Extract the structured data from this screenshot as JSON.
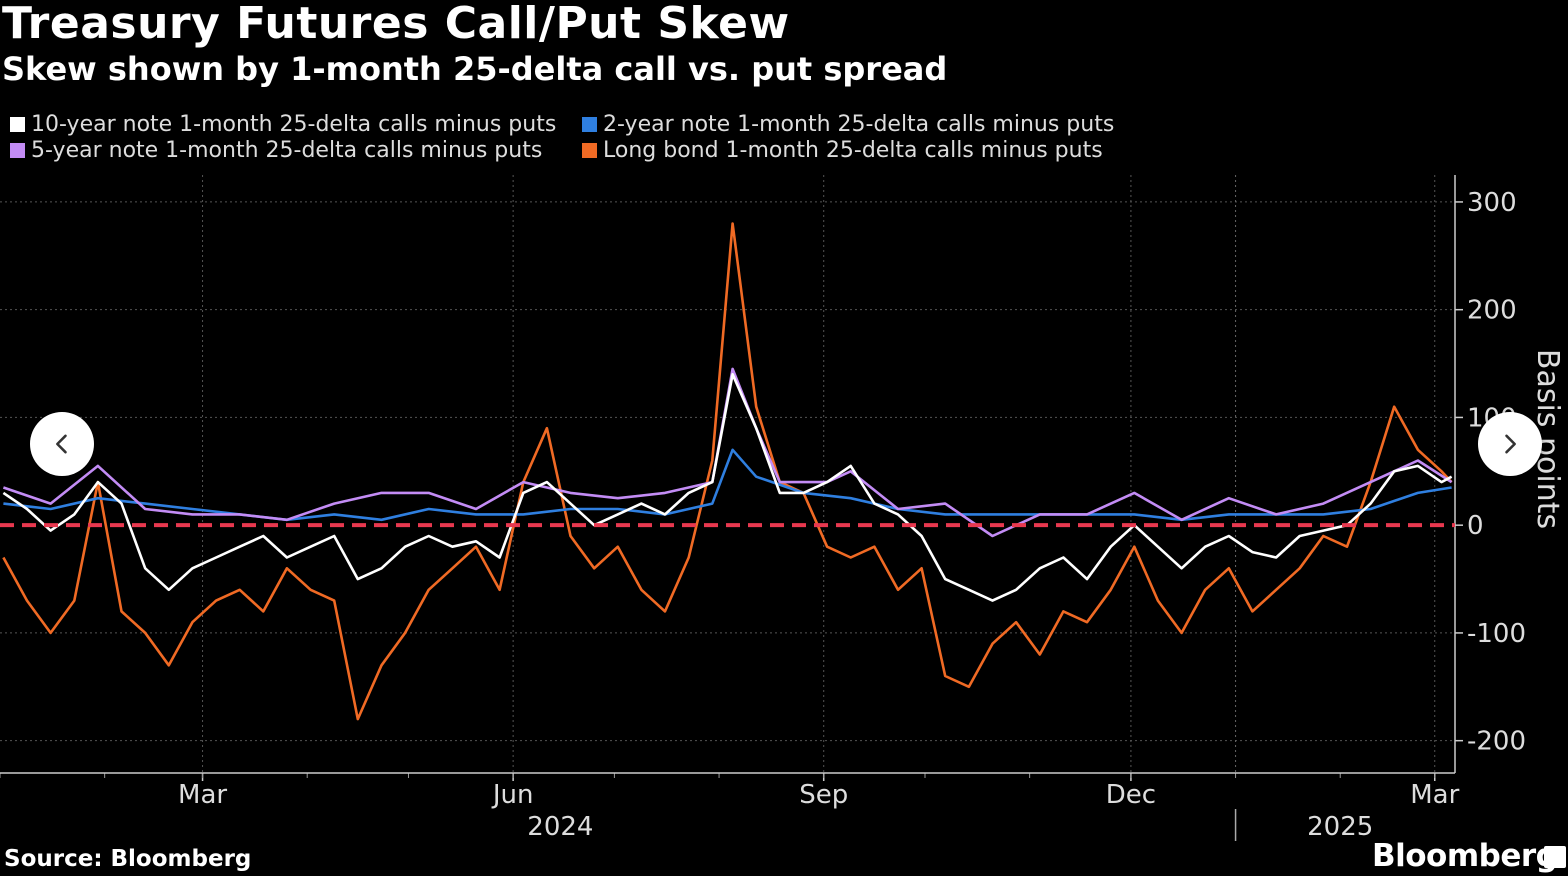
{
  "title": "Treasury Futures Call/Put Skew",
  "subtitle": "Skew shown by 1-month 25-delta call vs. put spread",
  "source": "Source: Bloomberg",
  "brand": "Bloomberg",
  "nav": {
    "prev_icon": "chevron-left-icon",
    "next_icon": "chevron-right-icon"
  },
  "chart_data": {
    "type": "line",
    "ylabel": "Basis points",
    "ylim": [
      -230,
      325
    ],
    "yticks": [
      300,
      200,
      100,
      0,
      -100,
      -200
    ],
    "zero_line": {
      "value": 0,
      "color": "#e8384f",
      "style": "dashed"
    },
    "x_start": "2024-01-01",
    "x_end": "2025-03-07",
    "month_ticks": [
      {
        "label": "Mar",
        "date": "2024-03-01"
      },
      {
        "label": "Jun",
        "date": "2024-06-01"
      },
      {
        "label": "Sep",
        "date": "2024-09-01"
      },
      {
        "label": "Dec",
        "date": "2024-12-01"
      },
      {
        "label": "Mar",
        "date": "2025-03-01"
      }
    ],
    "year_labels": [
      {
        "label": "2024",
        "date": "2024-06-15"
      },
      {
        "label": "2025",
        "date": "2025-02-01"
      }
    ],
    "year_divider": "2025-01-01",
    "legend_placement": "top-left",
    "grid": true,
    "series": [
      {
        "name": "10-year note 1-month 25-delta calls minus puts",
        "color": "#ffffff",
        "points": [
          [
            "2024-01-02",
            30
          ],
          [
            "2024-01-09",
            15
          ],
          [
            "2024-01-16",
            -5
          ],
          [
            "2024-01-23",
            10
          ],
          [
            "2024-01-30",
            40
          ],
          [
            "2024-02-06",
            20
          ],
          [
            "2024-02-13",
            -40
          ],
          [
            "2024-02-20",
            -60
          ],
          [
            "2024-02-27",
            -40
          ],
          [
            "2024-03-05",
            -30
          ],
          [
            "2024-03-12",
            -20
          ],
          [
            "2024-03-19",
            -10
          ],
          [
            "2024-03-26",
            -30
          ],
          [
            "2024-04-02",
            -20
          ],
          [
            "2024-04-09",
            -10
          ],
          [
            "2024-04-16",
            -50
          ],
          [
            "2024-04-23",
            -40
          ],
          [
            "2024-04-30",
            -20
          ],
          [
            "2024-05-07",
            -10
          ],
          [
            "2024-05-14",
            -20
          ],
          [
            "2024-05-21",
            -15
          ],
          [
            "2024-05-28",
            -30
          ],
          [
            "2024-06-04",
            30
          ],
          [
            "2024-06-11",
            40
          ],
          [
            "2024-06-18",
            20
          ],
          [
            "2024-06-25",
            0
          ],
          [
            "2024-07-02",
            10
          ],
          [
            "2024-07-09",
            20
          ],
          [
            "2024-07-16",
            10
          ],
          [
            "2024-07-23",
            30
          ],
          [
            "2024-07-30",
            40
          ],
          [
            "2024-08-05",
            140
          ],
          [
            "2024-08-12",
            90
          ],
          [
            "2024-08-19",
            30
          ],
          [
            "2024-08-26",
            30
          ],
          [
            "2024-09-02",
            40
          ],
          [
            "2024-09-09",
            55
          ],
          [
            "2024-09-16",
            20
          ],
          [
            "2024-09-23",
            10
          ],
          [
            "2024-09-30",
            -10
          ],
          [
            "2024-10-07",
            -50
          ],
          [
            "2024-10-14",
            -60
          ],
          [
            "2024-10-21",
            -70
          ],
          [
            "2024-10-28",
            -60
          ],
          [
            "2024-11-04",
            -40
          ],
          [
            "2024-11-11",
            -30
          ],
          [
            "2024-11-18",
            -50
          ],
          [
            "2024-11-25",
            -20
          ],
          [
            "2024-12-02",
            0
          ],
          [
            "2024-12-09",
            -20
          ],
          [
            "2024-12-16",
            -40
          ],
          [
            "2024-12-23",
            -20
          ],
          [
            "2024-12-30",
            -10
          ],
          [
            "2025-01-06",
            -25
          ],
          [
            "2025-01-13",
            -30
          ],
          [
            "2025-01-20",
            -10
          ],
          [
            "2025-01-27",
            -5
          ],
          [
            "2025-02-03",
            0
          ],
          [
            "2025-02-10",
            20
          ],
          [
            "2025-02-17",
            50
          ],
          [
            "2025-02-24",
            55
          ],
          [
            "2025-03-03",
            40
          ],
          [
            "2025-03-06",
            45
          ]
        ]
      },
      {
        "name": "2-year note 1-month 25-delta calls minus puts",
        "color": "#2f7fe0",
        "points": [
          [
            "2024-01-02",
            20
          ],
          [
            "2024-01-16",
            15
          ],
          [
            "2024-01-30",
            25
          ],
          [
            "2024-02-13",
            20
          ],
          [
            "2024-02-27",
            15
          ],
          [
            "2024-03-12",
            10
          ],
          [
            "2024-03-26",
            5
          ],
          [
            "2024-04-09",
            10
          ],
          [
            "2024-04-23",
            5
          ],
          [
            "2024-05-07",
            15
          ],
          [
            "2024-05-21",
            10
          ],
          [
            "2024-06-04",
            10
          ],
          [
            "2024-06-18",
            15
          ],
          [
            "2024-07-02",
            15
          ],
          [
            "2024-07-16",
            10
          ],
          [
            "2024-07-30",
            20
          ],
          [
            "2024-08-05",
            70
          ],
          [
            "2024-08-12",
            45
          ],
          [
            "2024-08-26",
            30
          ],
          [
            "2024-09-09",
            25
          ],
          [
            "2024-09-23",
            15
          ],
          [
            "2024-10-07",
            10
          ],
          [
            "2024-10-21",
            10
          ],
          [
            "2024-11-04",
            10
          ],
          [
            "2024-11-18",
            10
          ],
          [
            "2024-12-02",
            10
          ],
          [
            "2024-12-16",
            5
          ],
          [
            "2024-12-30",
            10
          ],
          [
            "2025-01-13",
            10
          ],
          [
            "2025-01-27",
            10
          ],
          [
            "2025-02-10",
            15
          ],
          [
            "2025-02-24",
            30
          ],
          [
            "2025-03-06",
            35
          ]
        ]
      },
      {
        "name": "5-year note 1-month 25-delta calls minus puts",
        "color": "#c38cf5",
        "points": [
          [
            "2024-01-02",
            35
          ],
          [
            "2024-01-16",
            20
          ],
          [
            "2024-01-30",
            55
          ],
          [
            "2024-02-13",
            15
          ],
          [
            "2024-02-27",
            10
          ],
          [
            "2024-03-12",
            10
          ],
          [
            "2024-03-26",
            5
          ],
          [
            "2024-04-09",
            20
          ],
          [
            "2024-04-23",
            30
          ],
          [
            "2024-05-07",
            30
          ],
          [
            "2024-05-21",
            15
          ],
          [
            "2024-06-04",
            40
          ],
          [
            "2024-06-18",
            30
          ],
          [
            "2024-07-02",
            25
          ],
          [
            "2024-07-16",
            30
          ],
          [
            "2024-07-30",
            40
          ],
          [
            "2024-08-05",
            145
          ],
          [
            "2024-08-12",
            90
          ],
          [
            "2024-08-19",
            40
          ],
          [
            "2024-09-02",
            40
          ],
          [
            "2024-09-09",
            50
          ],
          [
            "2024-09-23",
            15
          ],
          [
            "2024-10-07",
            20
          ],
          [
            "2024-10-21",
            -10
          ],
          [
            "2024-11-04",
            10
          ],
          [
            "2024-11-18",
            10
          ],
          [
            "2024-12-02",
            30
          ],
          [
            "2024-12-16",
            5
          ],
          [
            "2024-12-30",
            25
          ],
          [
            "2025-01-13",
            10
          ],
          [
            "2025-01-27",
            20
          ],
          [
            "2025-02-10",
            40
          ],
          [
            "2025-02-24",
            60
          ],
          [
            "2025-03-06",
            40
          ]
        ]
      },
      {
        "name": "Long bond 1-month 25-delta calls minus puts",
        "color": "#f06a24",
        "points": [
          [
            "2024-01-02",
            -30
          ],
          [
            "2024-01-09",
            -70
          ],
          [
            "2024-01-16",
            -100
          ],
          [
            "2024-01-23",
            -70
          ],
          [
            "2024-01-30",
            40
          ],
          [
            "2024-02-06",
            -80
          ],
          [
            "2024-02-13",
            -100
          ],
          [
            "2024-02-20",
            -130
          ],
          [
            "2024-02-27",
            -90
          ],
          [
            "2024-03-05",
            -70
          ],
          [
            "2024-03-12",
            -60
          ],
          [
            "2024-03-19",
            -80
          ],
          [
            "2024-03-26",
            -40
          ],
          [
            "2024-04-02",
            -60
          ],
          [
            "2024-04-09",
            -70
          ],
          [
            "2024-04-16",
            -180
          ],
          [
            "2024-04-23",
            -130
          ],
          [
            "2024-04-30",
            -100
          ],
          [
            "2024-05-07",
            -60
          ],
          [
            "2024-05-14",
            -40
          ],
          [
            "2024-05-21",
            -20
          ],
          [
            "2024-05-28",
            -60
          ],
          [
            "2024-06-04",
            40
          ],
          [
            "2024-06-11",
            90
          ],
          [
            "2024-06-18",
            -10
          ],
          [
            "2024-06-25",
            -40
          ],
          [
            "2024-07-02",
            -20
          ],
          [
            "2024-07-09",
            -60
          ],
          [
            "2024-07-16",
            -80
          ],
          [
            "2024-07-23",
            -30
          ],
          [
            "2024-07-30",
            60
          ],
          [
            "2024-08-05",
            280
          ],
          [
            "2024-08-12",
            110
          ],
          [
            "2024-08-19",
            40
          ],
          [
            "2024-08-26",
            30
          ],
          [
            "2024-09-02",
            -20
          ],
          [
            "2024-09-09",
            -30
          ],
          [
            "2024-09-16",
            -20
          ],
          [
            "2024-09-23",
            -60
          ],
          [
            "2024-09-30",
            -40
          ],
          [
            "2024-10-07",
            -140
          ],
          [
            "2024-10-14",
            -150
          ],
          [
            "2024-10-21",
            -110
          ],
          [
            "2024-10-28",
            -90
          ],
          [
            "2024-11-04",
            -120
          ],
          [
            "2024-11-11",
            -80
          ],
          [
            "2024-11-18",
            -90
          ],
          [
            "2024-11-25",
            -60
          ],
          [
            "2024-12-02",
            -20
          ],
          [
            "2024-12-09",
            -70
          ],
          [
            "2024-12-16",
            -100
          ],
          [
            "2024-12-23",
            -60
          ],
          [
            "2024-12-30",
            -40
          ],
          [
            "2025-01-06",
            -80
          ],
          [
            "2025-01-13",
            -60
          ],
          [
            "2025-01-20",
            -40
          ],
          [
            "2025-01-27",
            -10
          ],
          [
            "2025-02-03",
            -20
          ],
          [
            "2025-02-10",
            40
          ],
          [
            "2025-02-17",
            110
          ],
          [
            "2025-02-24",
            70
          ],
          [
            "2025-03-03",
            50
          ],
          [
            "2025-03-06",
            40
          ]
        ]
      }
    ]
  }
}
